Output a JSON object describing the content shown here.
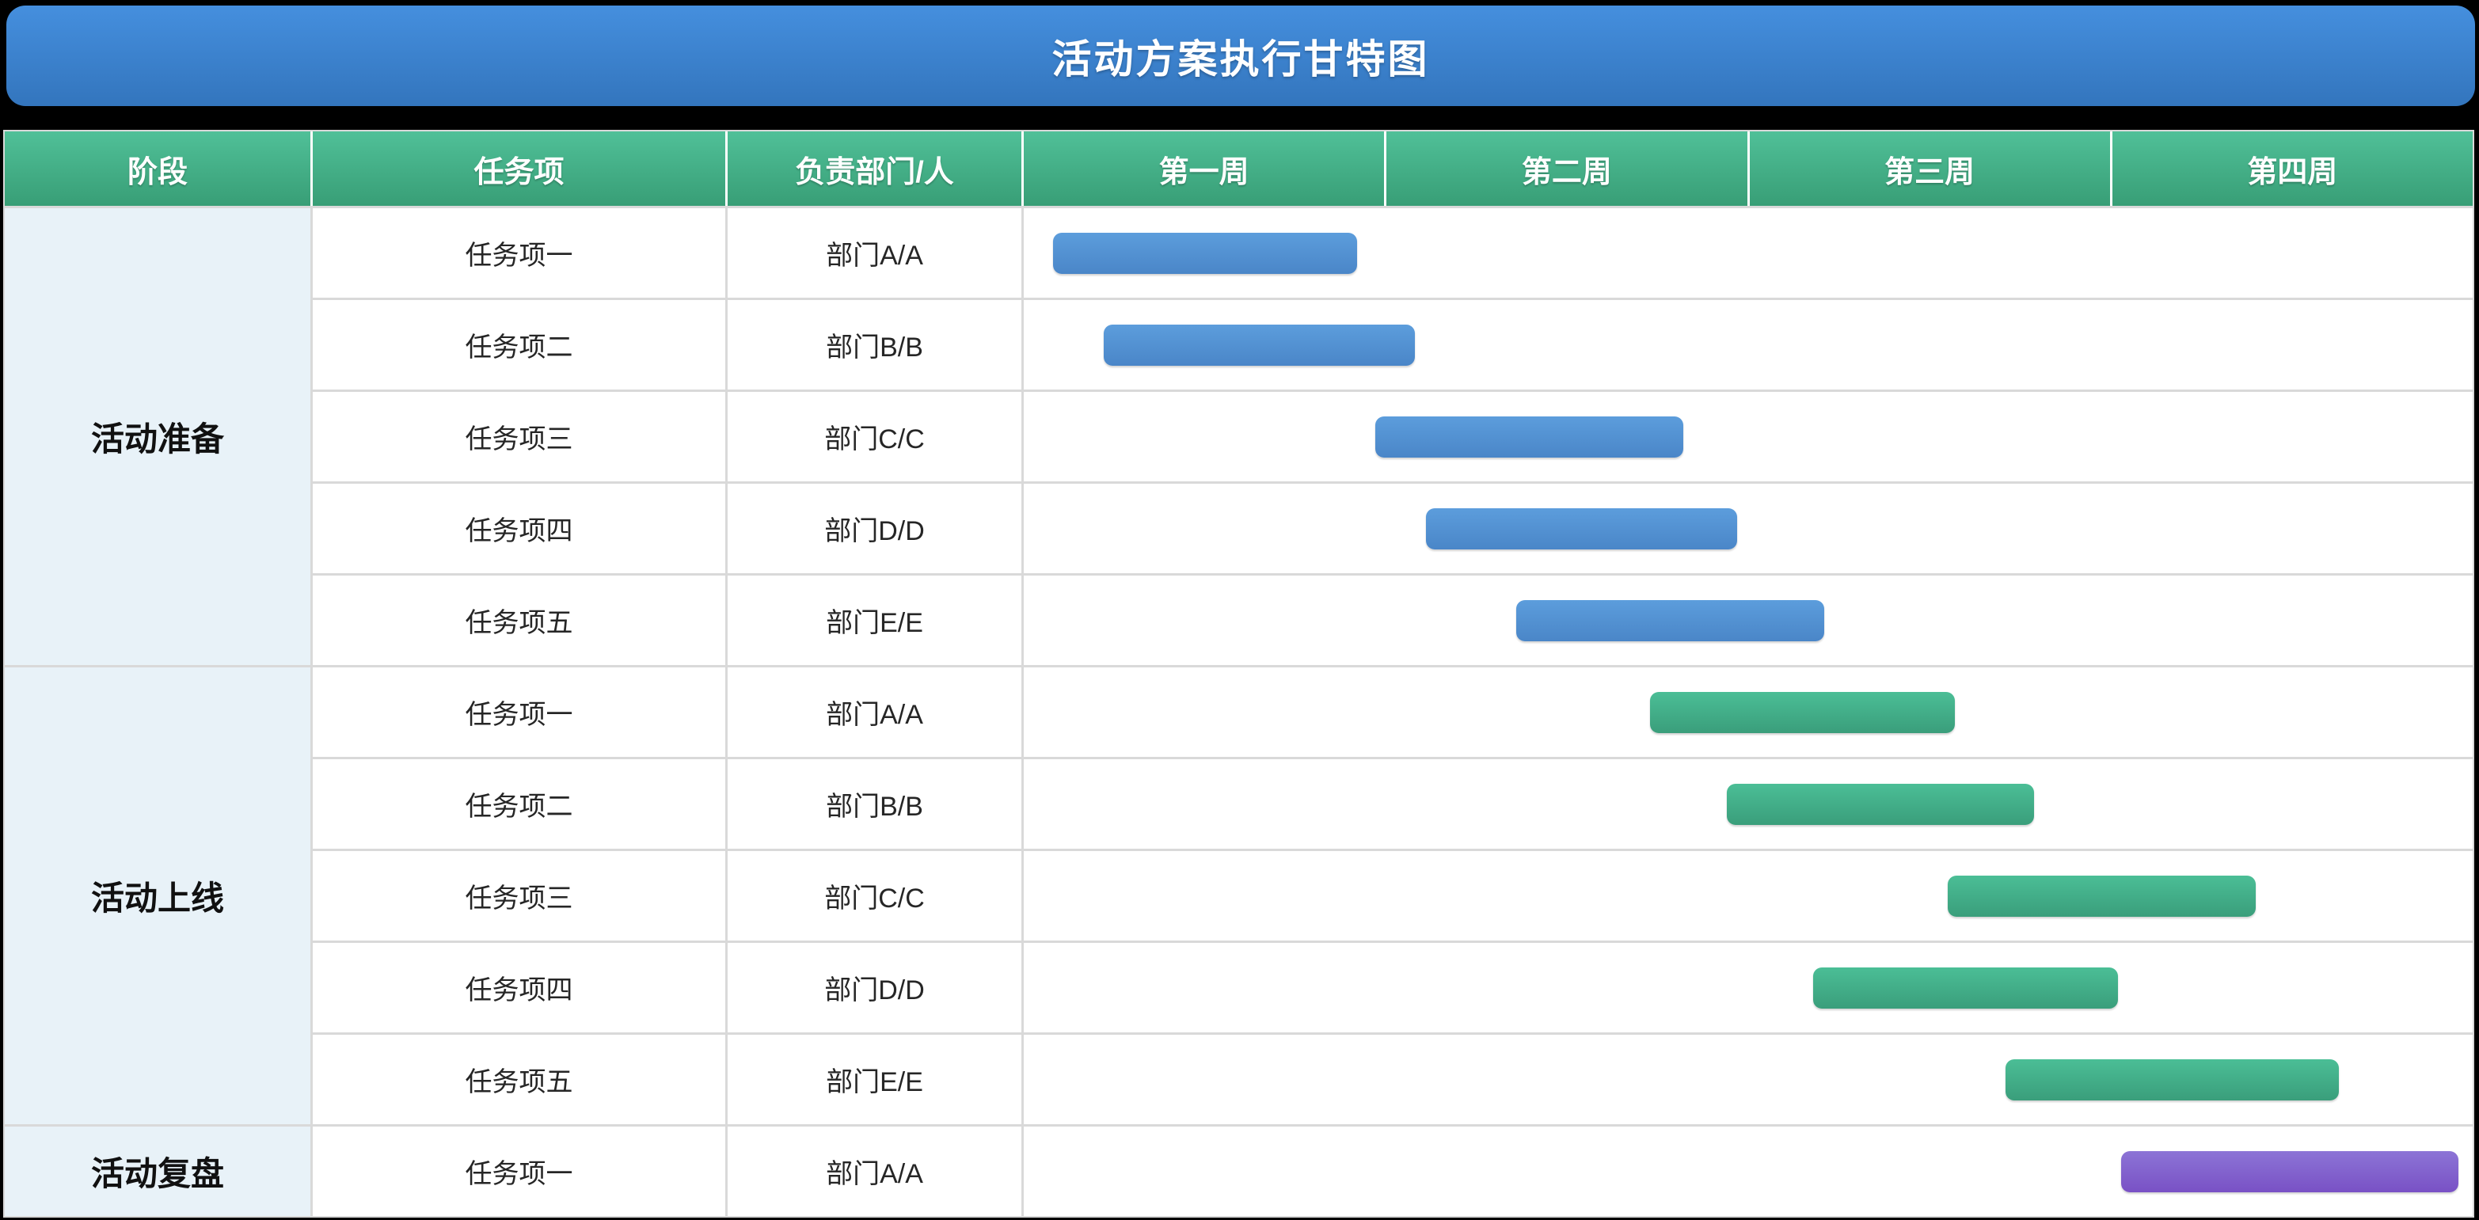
{
  "title": "活动方案执行甘特图",
  "colors": {
    "title_top": "#458FDE",
    "title_bottom": "#3375BD",
    "header_top": "#50C098",
    "header_bottom": "#389E76",
    "phase_bg": "#E8F2F8",
    "grid_line": "#D9D9D9",
    "bar_blue_top": "#5C9DDC",
    "bar_blue_bottom": "#4A86C8",
    "bar_green_top": "#4BBE96",
    "bar_green_bottom": "#3A9E7B",
    "bar_purple_top": "#8C74D6",
    "bar_purple_bottom": "#7951C5"
  },
  "table": {
    "headers": [
      "阶段",
      "任务项",
      "负责部门/人",
      "第一周",
      "第二周",
      "第三周",
      "第四周"
    ],
    "groups": [
      {
        "phase": "活动准备",
        "rows": [
          {
            "task": "任务项一",
            "owner": "部门A/A",
            "bar": {
              "start_week": 1.08,
              "end_week": 1.92,
              "palette": "blue"
            }
          },
          {
            "task": "任务项二",
            "owner": "部门B/B",
            "bar": {
              "start_week": 1.22,
              "end_week": 2.08,
              "palette": "blue"
            }
          },
          {
            "task": "任务项三",
            "owner": "部门C/C",
            "bar": {
              "start_week": 1.97,
              "end_week": 2.82,
              "palette": "blue"
            }
          },
          {
            "task": "任务项四",
            "owner": "部门D/D",
            "bar": {
              "start_week": 2.11,
              "end_week": 2.97,
              "palette": "blue"
            }
          },
          {
            "task": "任务项五",
            "owner": "部门E/E",
            "bar": {
              "start_week": 2.36,
              "end_week": 3.21,
              "palette": "blue"
            }
          }
        ]
      },
      {
        "phase": "活动上线",
        "rows": [
          {
            "task": "任务项一",
            "owner": "部门A/A",
            "bar": {
              "start_week": 2.73,
              "end_week": 3.57,
              "palette": "green"
            }
          },
          {
            "task": "任务项二",
            "owner": "部门B/B",
            "bar": {
              "start_week": 2.94,
              "end_week": 3.79,
              "palette": "green"
            }
          },
          {
            "task": "任务项三",
            "owner": "部门C/C",
            "bar": {
              "start_week": 3.55,
              "end_week": 4.4,
              "palette": "green"
            }
          },
          {
            "task": "任务项四",
            "owner": "部门D/D",
            "bar": {
              "start_week": 3.18,
              "end_week": 4.02,
              "palette": "green"
            }
          },
          {
            "task": "任务项五",
            "owner": "部门E/E",
            "bar": {
              "start_week": 3.71,
              "end_week": 4.63,
              "palette": "green"
            }
          }
        ]
      },
      {
        "phase": "活动复盘",
        "rows": [
          {
            "task": "任务项一",
            "owner": "部门A/A",
            "bar": {
              "start_week": 4.03,
              "end_week": 4.96,
              "palette": "purple"
            }
          }
        ]
      }
    ]
  },
  "chart_data": {
    "type": "bar",
    "subtype": "gantt",
    "title": "活动方案执行甘特图",
    "columns": [
      "阶段",
      "任务项",
      "负责部门/人",
      "第一周",
      "第二周",
      "第三周",
      "第四周"
    ],
    "x_axis": {
      "unit": "week",
      "categories": [
        "第一周",
        "第二周",
        "第三周",
        "第四周"
      ],
      "range": [
        1,
        5
      ]
    },
    "grid": false,
    "legend": false,
    "tasks": [
      {
        "phase": "活动准备",
        "task": "任务项一",
        "owner": "部门A/A",
        "start_week": 1.08,
        "end_week": 1.92,
        "color": "#5C9DDC"
      },
      {
        "phase": "活动准备",
        "task": "任务项二",
        "owner": "部门B/B",
        "start_week": 1.22,
        "end_week": 2.08,
        "color": "#5C9DDC"
      },
      {
        "phase": "活动准备",
        "task": "任务项三",
        "owner": "部门C/C",
        "start_week": 1.97,
        "end_week": 2.82,
        "color": "#5C9DDC"
      },
      {
        "phase": "活动准备",
        "task": "任务项四",
        "owner": "部门D/D",
        "start_week": 2.11,
        "end_week": 2.97,
        "color": "#5C9DDC"
      },
      {
        "phase": "活动准备",
        "task": "任务项五",
        "owner": "部门E/E",
        "start_week": 2.36,
        "end_week": 3.21,
        "color": "#5C9DDC"
      },
      {
        "phase": "活动上线",
        "task": "任务项一",
        "owner": "部门A/A",
        "start_week": 2.73,
        "end_week": 3.57,
        "color": "#4BBE96"
      },
      {
        "phase": "活动上线",
        "task": "任务项二",
        "owner": "部门B/B",
        "start_week": 2.94,
        "end_week": 3.79,
        "color": "#4BBE96"
      },
      {
        "phase": "活动上线",
        "task": "任务项三",
        "owner": "部门C/C",
        "start_week": 3.55,
        "end_week": 4.4,
        "color": "#4BBE96"
      },
      {
        "phase": "活动上线",
        "task": "任务项四",
        "owner": "部门D/D",
        "start_week": 3.18,
        "end_week": 4.02,
        "color": "#4BBE96"
      },
      {
        "phase": "活动上线",
        "task": "任务项五",
        "owner": "部门E/E",
        "start_week": 3.71,
        "end_week": 4.63,
        "color": "#4BBE96"
      },
      {
        "phase": "活动复盘",
        "task": "任务项一",
        "owner": "部门A/A",
        "start_week": 4.03,
        "end_week": 4.96,
        "color": "#8C74D6"
      }
    ]
  }
}
